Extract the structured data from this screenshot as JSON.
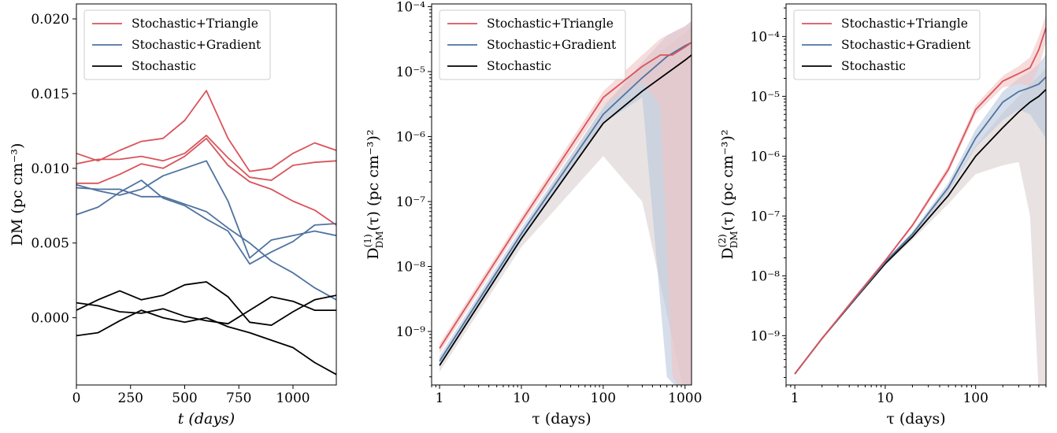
{
  "colors": {
    "triangle": "#d9545b",
    "gradient": "#4f73a0",
    "stochastic": "#000000",
    "band_triangle": "#f2c4c5",
    "band_gradient": "#b9c8dc",
    "band_stochastic": "#d8d1cf"
  },
  "chart_data": [
    {
      "type": "line",
      "xlabel": "t (days)",
      "ylabel": "DM (pc cm⁻³)",
      "xlim": [
        0,
        1200
      ],
      "ylim": [
        -0.0045,
        0.021
      ],
      "xticks": [
        "0",
        "250",
        "500",
        "750",
        "1000"
      ],
      "yticks": [
        "0.000",
        "0.005",
        "0.010",
        "0.015",
        "0.020"
      ],
      "legend_position": "top-left",
      "legend": [
        "Stochastic+Triangle",
        "Stochastic+Gradient",
        "Stochastic"
      ],
      "x": [
        0,
        100,
        200,
        300,
        400,
        500,
        600,
        700,
        800,
        900,
        1000,
        1100,
        1200
      ],
      "series": [
        {
          "name": "Stochastic+Triangle",
          "lines": [
            [
              0.011,
              0.0105,
              0.0112,
              0.0118,
              0.012,
              0.0132,
              0.0152,
              0.012,
              0.0098,
              0.01,
              0.011,
              0.0117,
              0.0112
            ],
            [
              0.0103,
              0.0106,
              0.0106,
              0.0108,
              0.0105,
              0.011,
              0.0122,
              0.0107,
              0.0094,
              0.0092,
              0.0102,
              0.0104,
              0.0105
            ],
            [
              0.009,
              0.009,
              0.0096,
              0.0103,
              0.01,
              0.0108,
              0.012,
              0.0102,
              0.0091,
              0.0086,
              0.0078,
              0.0072,
              0.0062
            ]
          ]
        },
        {
          "name": "Stochastic+Gradient",
          "lines": [
            [
              0.0089,
              0.0085,
              0.0082,
              0.0086,
              0.0095,
              0.01,
              0.0105,
              0.0078,
              0.004,
              0.0052,
              0.0055,
              0.0058,
              0.0055
            ],
            [
              0.0087,
              0.0086,
              0.0086,
              0.0081,
              0.0081,
              0.0076,
              0.0071,
              0.006,
              0.005,
              0.0038,
              0.003,
              0.002,
              0.0012
            ],
            [
              0.0069,
              0.0074,
              0.0084,
              0.0092,
              0.008,
              0.0075,
              0.0066,
              0.0058,
              0.0036,
              0.0044,
              0.0051,
              0.0062,
              0.0063
            ]
          ]
        },
        {
          "name": "Stochastic",
          "lines": [
            [
              0.0005,
              0.0012,
              0.0018,
              0.0012,
              0.0015,
              0.0022,
              0.0024,
              0.0014,
              -0.0003,
              -0.0005,
              0.0004,
              0.0012,
              0.0015
            ],
            [
              0.001,
              0.0008,
              0.0004,
              0.0003,
              0.0006,
              0.0001,
              -0.0002,
              -0.0004,
              0.0005,
              0.0014,
              0.0011,
              0.0005,
              0.0005
            ],
            [
              -0.0012,
              -0.001,
              -0.0002,
              0.0005,
              0.0,
              -0.0003,
              0.0,
              -0.0006,
              -0.001,
              -0.0015,
              -0.002,
              -0.003,
              -0.0038
            ]
          ]
        }
      ]
    },
    {
      "type": "line",
      "xscale": "log",
      "yscale": "log",
      "xlabel": "τ (days)",
      "ylabel": "D⁽¹⁾_DM(τ) (pc cm⁻³)²",
      "ylabel_main": "D",
      "ylabel_sup": "(1)",
      "ylabel_sub": "DM",
      "ylabel_rest": "(τ) (pc cm⁻³)²",
      "xlim": [
        0.8,
        1200
      ],
      "ylim": [
        1.5e-10,
        0.00011
      ],
      "xticks": [
        "1",
        "10",
        "100",
        "1000"
      ],
      "yticks": [
        "10⁻⁹",
        "10⁻⁸",
        "10⁻⁷",
        "10⁻⁶",
        "10⁻⁵",
        "10⁻⁴"
      ],
      "legend_position": "top-left",
      "legend": [
        "Stochastic+Triangle",
        "Stochastic+Gradient",
        "Stochastic"
      ],
      "series": [
        {
          "name": "Stochastic+Triangle",
          "x": [
            1,
            10,
            100,
            300,
            500,
            700,
            1000,
            1200
          ],
          "y": [
            5.5e-10,
            5e-08,
            4e-06,
            1.2e-05,
            1.8e-05,
            1.8e-05,
            2.4e-05,
            2.8e-05
          ],
          "band_lower": [
            4.6e-10,
            4.2e-08,
            3e-06,
            7e-06,
            3e-06,
            2e-10,
            1e-10,
            1e-10
          ],
          "band_upper": [
            6.5e-10,
            5.9e-08,
            5e-06,
            1.8e-05,
            3.2e-05,
            4e-05,
            5e-05,
            6e-05
          ]
        },
        {
          "name": "Stochastic+Gradient",
          "x": [
            1,
            10,
            100,
            300,
            600,
            1000,
            1200
          ],
          "y": [
            3.5e-10,
            3.2e-08,
            2.2e-06,
            8e-06,
            1.7e-05,
            2.5e-05,
            2.8e-05
          ],
          "band_lower": [
            2.8e-10,
            2.5e-08,
            1.6e-06,
            4e-06,
            2e-10,
            1e-10,
            1e-10
          ],
          "band_upper": [
            4.2e-10,
            3.9e-08,
            2.8e-06,
            1.4e-05,
            3.6e-05,
            5e-05,
            6e-05
          ]
        },
        {
          "name": "Stochastic",
          "x": [
            1,
            10,
            100,
            300,
            1000,
            1200
          ],
          "y": [
            3e-10,
            2.7e-08,
            1.6e-06,
            5e-06,
            1.5e-05,
            1.8e-05
          ],
          "band_lower": [
            2.4e-10,
            2e-08,
            5e-07,
            1e-07,
            1e-10,
            1e-10
          ],
          "band_upper": [
            3.6e-10,
            3.4e-08,
            3e-06,
            1.2e-05,
            4e-05,
            5e-05
          ]
        }
      ]
    },
    {
      "type": "line",
      "xscale": "log",
      "yscale": "log",
      "xlabel": "τ (days)",
      "ylabel": "D⁽²⁾_DM(τ) (pc cm⁻³)²",
      "ylabel_main": "D",
      "ylabel_sup": "(2)",
      "ylabel_sub": "DM",
      "ylabel_rest": "(τ) (pc cm⁻³)²",
      "xlim": [
        0.8,
        600
      ],
      "ylim": [
        1.5e-10,
        0.00035
      ],
      "xticks": [
        "1",
        "10",
        "100"
      ],
      "yticks": [
        "10⁻⁹",
        "10⁻⁸",
        "10⁻⁷",
        "10⁻⁶",
        "10⁻⁵",
        "10⁻⁴"
      ],
      "legend_position": "top-left",
      "legend": [
        "Stochastic+Triangle",
        "Stochastic+Gradient",
        "Stochastic"
      ],
      "series": [
        {
          "name": "Stochastic+Triangle",
          "x": [
            1,
            2,
            5,
            10,
            20,
            50,
            100,
            200,
            300,
            400,
            500,
            600
          ],
          "y": [
            2.3e-10,
            9e-10,
            5e-09,
            1.8e-08,
            7e-08,
            6e-07,
            6e-06,
            1.8e-05,
            2.4e-05,
            3e-05,
            6e-05,
            0.00014
          ],
          "band_lower": [
            2.2e-10,
            8.6e-10,
            4.7e-09,
            1.7e-08,
            6.5e-08,
            5.2e-07,
            5e-06,
            1.4e-05,
            1.6e-05,
            1.5e-05,
            3e-05,
            8e-05
          ],
          "band_upper": [
            2.4e-10,
            9.4e-10,
            5.3e-09,
            1.9e-08,
            7.5e-08,
            7e-07,
            7.2e-06,
            2.2e-05,
            3.2e-05,
            4.5e-05,
            0.0001,
            0.00023
          ]
        },
        {
          "name": "Stochastic+Gradient",
          "x": [
            1,
            2,
            5,
            10,
            20,
            50,
            100,
            200,
            300,
            400,
            500,
            600
          ],
          "y": [
            2.3e-10,
            9e-10,
            4.8e-09,
            1.7e-08,
            5e-08,
            3e-07,
            2e-06,
            8e-06,
            1.2e-05,
            1.4e-05,
            1.6e-05,
            2.1e-05
          ],
          "band_lower": [
            2.2e-10,
            8.6e-10,
            4.5e-09,
            1.6e-08,
            4.5e-08,
            2.5e-07,
            1.4e-06,
            4e-06,
            6e-06,
            5e-06,
            3e-06,
            2e-06
          ],
          "band_upper": [
            2.4e-10,
            9.4e-10,
            5.1e-09,
            1.8e-08,
            5.5e-08,
            3.6e-07,
            2.8e-06,
            1.2e-05,
            2e-05,
            2.6e-05,
            3.5e-05,
            5e-05
          ]
        },
        {
          "name": "Stochastic",
          "x": [
            1,
            2,
            5,
            10,
            20,
            50,
            100,
            200,
            300,
            400,
            500,
            600
          ],
          "y": [
            2.3e-10,
            9e-10,
            4.7e-09,
            1.6e-08,
            4.5e-08,
            2.2e-07,
            1e-06,
            3e-06,
            5.5e-06,
            8e-06,
            1e-05,
            1.3e-05
          ],
          "band_lower": [
            2.2e-10,
            8.6e-10,
            4.4e-09,
            1.5e-08,
            4e-08,
            1.6e-07,
            5e-07,
            7e-07,
            8e-07,
            1e-07,
            1e-10,
            1e-10
          ],
          "band_upper": [
            2.4e-10,
            9.4e-10,
            5e-09,
            1.7e-08,
            5e-08,
            2.8e-07,
            1.5e-06,
            5.3e-06,
            1e-05,
            1.6e-05,
            2.2e-05,
            3e-05
          ]
        }
      ]
    }
  ]
}
